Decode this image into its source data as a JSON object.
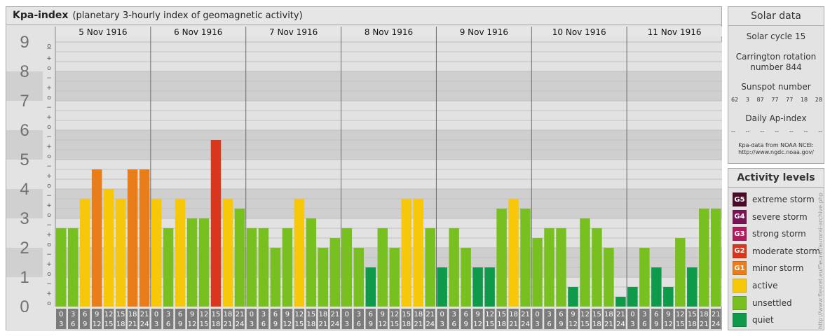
{
  "title": "Kpa-index",
  "subtitle": "(planetary 3-hourly index of geomagnetic activity)",
  "chart_data": {
    "type": "bar",
    "title": "Kpa-index",
    "subtitle": "(planetary 3-hourly index of geomagnetic activity)",
    "ylim": [
      0,
      9
    ],
    "y_ticks": [
      "0",
      "1",
      "2",
      "3",
      "4",
      "5",
      "6",
      "7",
      "8",
      "9"
    ],
    "minor_ticks": [
      "o",
      "+",
      "−"
    ],
    "days": [
      "5 Nov 1916",
      "6 Nov 1916",
      "7 Nov 1916",
      "8 Nov 1916",
      "9 Nov 1916",
      "10 Nov 1916",
      "11 Nov 1916"
    ],
    "hour_labels_top": [
      "0",
      "3",
      "6",
      "9",
      "12",
      "15",
      "18",
      "21"
    ],
    "hour_labels_bottom": [
      "3",
      "6",
      "9",
      "12",
      "15",
      "18",
      "21",
      "24"
    ],
    "values": [
      [
        2.667,
        2.667,
        3.667,
        4.667,
        4.0,
        3.667,
        4.667,
        4.667
      ],
      [
        3.667,
        2.667,
        3.667,
        3.0,
        3.0,
        5.667,
        3.667,
        3.333
      ],
      [
        2.667,
        2.667,
        2.0,
        2.667,
        3.667,
        3.0,
        2.0,
        2.333
      ],
      [
        2.667,
        2.0,
        1.333,
        2.667,
        2.0,
        3.667,
        3.667,
        2.667
      ],
      [
        1.333,
        2.667,
        2.0,
        1.333,
        1.333,
        3.333,
        3.667,
        3.333
      ],
      [
        2.333,
        2.667,
        2.667,
        0.667,
        3.0,
        2.667,
        2.0,
        0.333
      ],
      [
        0.667,
        2.0,
        1.333,
        0.667,
        2.333,
        1.333,
        3.333,
        3.333
      ]
    ]
  },
  "colors": {
    "quiet": "#0e9a4a",
    "unsettled": "#78c020",
    "active": "#f7c80a",
    "g1": "#e87d1a",
    "g2": "#d8371e",
    "g3": "#b01c5e",
    "g4": "#7a1456",
    "g5": "#4d0b2a"
  },
  "solar": {
    "title": "Solar data",
    "cycle": "Solar cycle 15",
    "carrington_1": "Carrington rotation",
    "carrington_2": "number 844",
    "sunspot_title": "Sunspot number",
    "sunspots": [
      "62",
      "3",
      "87",
      "77",
      "77",
      "18",
      "28"
    ],
    "ap_title": "Daily Ap-index",
    "ap_values": [
      "--",
      "--",
      "--",
      "--",
      "--",
      "--",
      "--"
    ],
    "credit_1": "Kpa-data from NOAA NCEI:",
    "credit_2": "http://www.ngdc.noaa.gov/"
  },
  "levels": {
    "title": "Activity levels",
    "items": [
      {
        "badge": "G5",
        "label": "extreme storm",
        "color": "#4d0b2a"
      },
      {
        "badge": "G4",
        "label": "severe storm",
        "color": "#7a1456"
      },
      {
        "badge": "G3",
        "label": "strong storm",
        "color": "#b01c5e"
      },
      {
        "badge": "G2",
        "label": "moderate storm",
        "color": "#d8371e"
      },
      {
        "badge": "G1",
        "label": "minor storm",
        "color": "#e87d1a"
      },
      {
        "badge": "",
        "label": "active",
        "color": "#f7c80a"
      },
      {
        "badge": "",
        "label": "unsettled",
        "color": "#78c020"
      },
      {
        "badge": "",
        "label": "quiet",
        "color": "#0e9a4a"
      }
    ]
  },
  "side_credit": "http://www.fleuret.eu/fleurat/auroral-archive.php"
}
